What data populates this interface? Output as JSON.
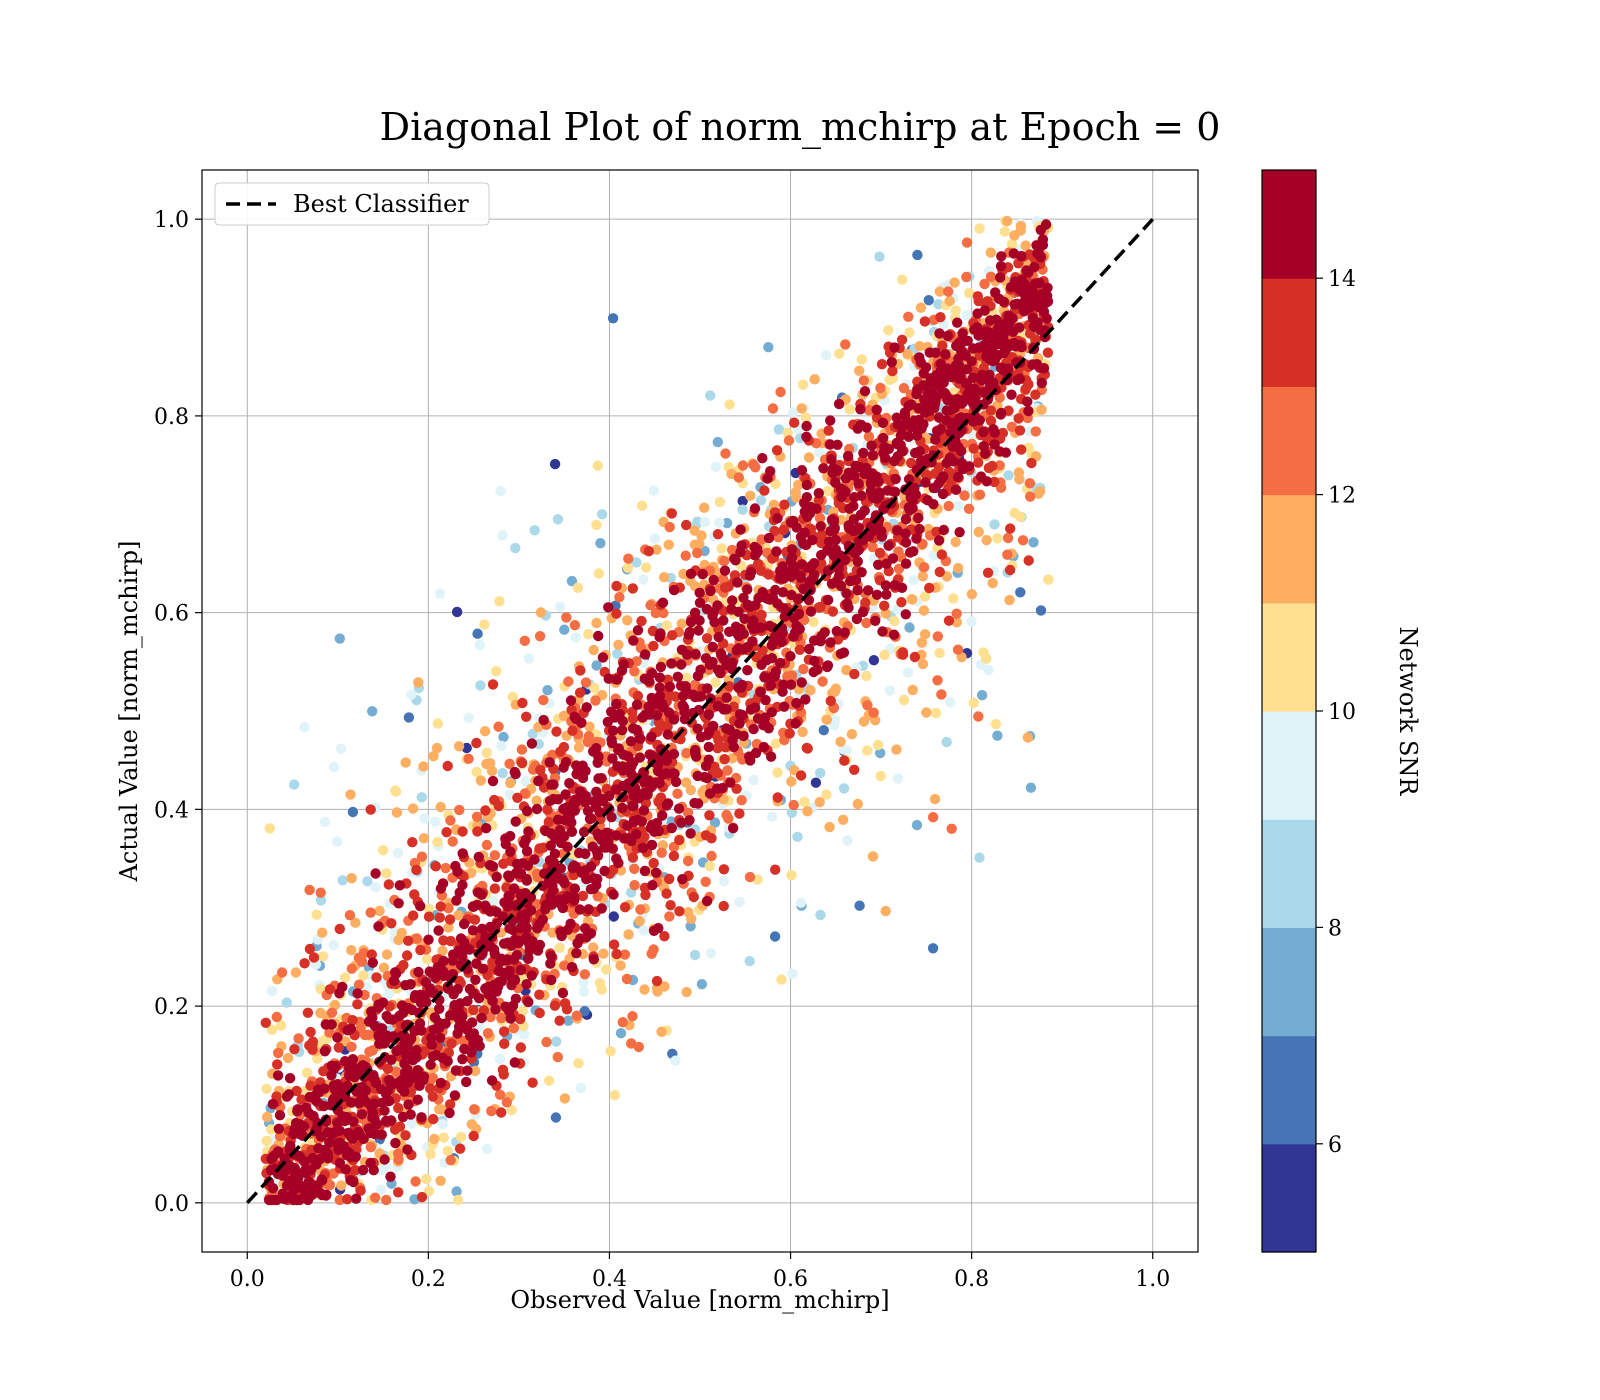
{
  "chart_data": {
    "type": "scatter",
    "title": "Diagonal Plot of norm_mchirp at Epoch = 0",
    "xlabel": "Observed Value [norm_mchirp]",
    "ylabel": "Actual Value [norm_mchirp]",
    "xlim": [
      -0.05,
      1.05
    ],
    "ylim": [
      -0.05,
      1.05
    ],
    "x_ticks": [
      0.0,
      0.2,
      0.4,
      0.6,
      0.8,
      1.0
    ],
    "y_ticks": [
      0.0,
      0.2,
      0.4,
      0.6,
      0.8,
      1.0
    ],
    "x_tick_labels": [
      "0.0",
      "0.2",
      "0.4",
      "0.6",
      "0.8",
      "1.0"
    ],
    "y_tick_labels": [
      "0.0",
      "0.2",
      "0.4",
      "0.6",
      "0.8",
      "1.0"
    ],
    "grid": true,
    "legend": {
      "placement": "top-left",
      "entries": [
        {
          "label": "Best Classifier",
          "style": "dashed",
          "color": "#000000"
        }
      ]
    },
    "reference_line": {
      "label": "Best Classifier",
      "x": [
        0.0,
        1.0
      ],
      "y": [
        0.0,
        1.0
      ],
      "style": "dashed",
      "color": "#000000"
    },
    "colorbar": {
      "label": "Network SNR",
      "range": [
        5,
        15
      ],
      "ticks": [
        6,
        8,
        10,
        12,
        14
      ],
      "tick_labels": [
        "6",
        "8",
        "10",
        "12",
        "14"
      ],
      "bins": [
        5,
        6,
        7,
        8,
        9,
        10,
        11,
        12,
        13,
        14,
        15
      ],
      "colors": [
        "#313695",
        "#4575b4",
        "#74add1",
        "#abd9e9",
        "#e0f3f8",
        "#fee090",
        "#fdae61",
        "#f46d43",
        "#d73027",
        "#a50026"
      ]
    },
    "point_cloud": {
      "description_of_distribution": "dense band along the diagonal; high-SNR points close to the diagonal, lower-SNR points spread further away",
      "x_range": [
        0.02,
        0.88
      ],
      "y_range": [
        0.0,
        1.0
      ]
    }
  }
}
